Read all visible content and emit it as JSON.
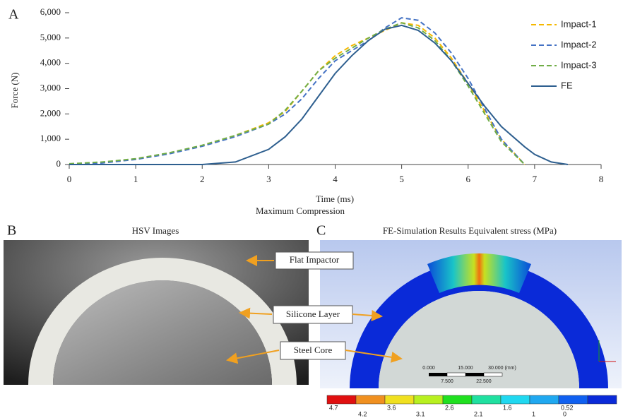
{
  "chart_data": {
    "type": "line",
    "x_label": "Time (ms)",
    "y_label": "Force (N)",
    "x": [
      0,
      0.5,
      1,
      1.5,
      2,
      2.5,
      3,
      3.25,
      3.5,
      3.75,
      4,
      4.25,
      4.5,
      4.75,
      5,
      5.25,
      5.5,
      5.75,
      6,
      6.25,
      6.5,
      6.85,
      7,
      7.25,
      7.5
    ],
    "series": [
      {
        "name": "Impact-1",
        "color": "#f5b800",
        "linestyle": "dashed",
        "values": [
          20,
          80,
          220,
          450,
          750,
          1150,
          1650,
          2100,
          2900,
          3700,
          4300,
          4700,
          5000,
          5300,
          5600,
          5500,
          5000,
          4200,
          3200,
          2100,
          1000,
          0,
          null,
          null,
          null
        ]
      },
      {
        "name": "Impact-2",
        "color": "#4472c4",
        "linestyle": "dashed",
        "values": [
          10,
          60,
          200,
          420,
          720,
          1100,
          1600,
          2000,
          2600,
          3400,
          4100,
          4500,
          4900,
          5400,
          5800,
          5700,
          5200,
          4400,
          3400,
          2200,
          1000,
          0,
          null,
          null,
          null
        ]
      },
      {
        "name": "Impact-3",
        "color": "#70ad47",
        "linestyle": "dashed",
        "values": [
          30,
          100,
          230,
          460,
          760,
          1150,
          1600,
          2150,
          2900,
          3700,
          4200,
          4600,
          5000,
          5350,
          5600,
          5400,
          4900,
          4100,
          3100,
          2000,
          900,
          0,
          null,
          null,
          null
        ]
      },
      {
        "name": "FE",
        "color": "#2e5f8f",
        "linestyle": "solid",
        "values": [
          0,
          0,
          0,
          0,
          0,
          100,
          600,
          1100,
          1800,
          2700,
          3600,
          4300,
          4900,
          5350,
          5500,
          5300,
          4800,
          4100,
          3200,
          2300,
          1500,
          700,
          400,
          100,
          0
        ]
      }
    ],
    "xlim": [
      0,
      8
    ],
    "xticks": [
      0,
      1,
      2,
      3,
      4,
      5,
      6,
      7,
      8
    ],
    "ylim": [
      0,
      6000
    ],
    "yticks": [
      0,
      {
        "value": 1000,
        "label": "1,000"
      },
      {
        "value": 2000,
        "label": "2,000"
      },
      {
        "value": 3000,
        "label": "3,000"
      },
      {
        "value": 4000,
        "label": "4,000"
      },
      {
        "value": 5000,
        "label": "5,000"
      },
      {
        "value": 6000,
        "label": "6,000"
      }
    ],
    "legend": "upper right",
    "grid": false
  },
  "figure": {
    "panel_a": "A",
    "panel_b": "B",
    "panel_c": "C",
    "caption": "Maximum Compression",
    "hsv_title": "HSV Images",
    "fe_title": "FE-Simulation Results Equivalent stress (MPa)",
    "annotations": [
      "Flat Impactor",
      "Silicone Layer",
      "Steel Core"
    ],
    "scale_bar_top": [
      "0.000",
      "15.000",
      "30.000 (mm)"
    ],
    "scale_bar_bottom": [
      "7.500",
      "22.500"
    ],
    "colorbar_top": [
      "4.7",
      "3.6",
      "2.6",
      "1.6",
      "0.52"
    ],
    "colorbar_bottom": [
      "4.2",
      "3.1",
      "2.1",
      "1",
      "0"
    ]
  }
}
